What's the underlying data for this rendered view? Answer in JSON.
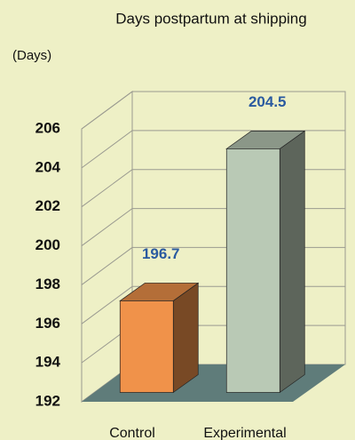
{
  "chart_data": {
    "type": "bar3d",
    "title": "Days postpartum at shipping",
    "y_label": "(Days)",
    "categories": [
      "Control",
      "Experimental"
    ],
    "values": [
      196.7,
      204.5
    ],
    "value_labels": [
      "196.7",
      "204.5"
    ],
    "colors": [
      "#f0924a",
      "#b9c9b5"
    ],
    "ylim": [
      192,
      206
    ],
    "yticks": [
      192,
      194,
      196,
      198,
      200,
      202,
      204,
      206
    ],
    "grid": true
  }
}
